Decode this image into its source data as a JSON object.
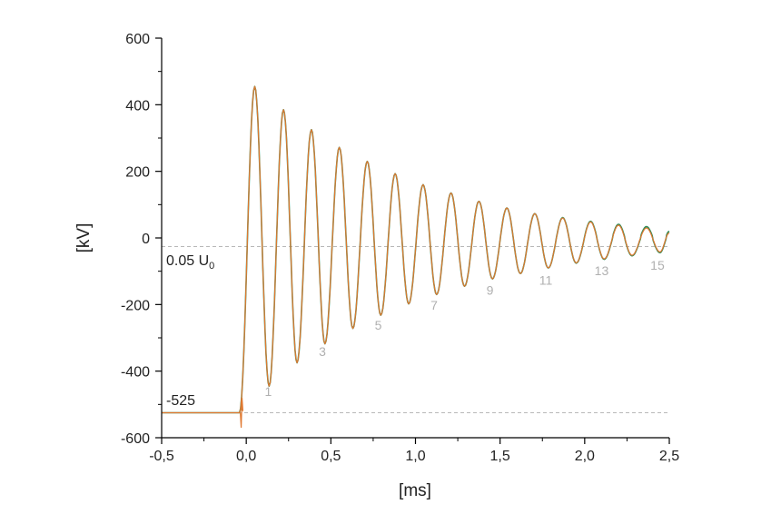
{
  "chart_data": {
    "type": "line",
    "title": "",
    "xlabel": "[ms]",
    "ylabel": "[kV]",
    "xlim": [
      -0.5,
      2.5
    ],
    "ylim": [
      -600,
      600
    ],
    "x_ticks": [
      "-0,5",
      "0,0",
      "0,5",
      "1,0",
      "1,5",
      "2,0",
      "2,5"
    ],
    "y_ticks": [
      "-600",
      "-400",
      "-200",
      "0",
      "200",
      "400",
      "600"
    ],
    "grid": false,
    "series_colors": [
      "#2e8b57",
      "#e07830"
    ],
    "reference_lines": [
      {
        "label": "0.05 U0",
        "value": -26,
        "style": "dashed",
        "color": "#b8b8b8"
      },
      {
        "label": "-525",
        "value": -525,
        "style": "dashed",
        "color": "#b8b8b8"
      }
    ],
    "annotations": {
      "level_label": "-525",
      "threshold_label_main": "0.05 U",
      "threshold_label_sub": "0"
    },
    "peak_labels": [
      {
        "text": "1",
        "x": 0.13,
        "y": -475
      },
      {
        "text": "3",
        "x": 0.45,
        "y": -355
      },
      {
        "text": "5",
        "x": 0.78,
        "y": -275
      },
      {
        "text": "7",
        "x": 1.11,
        "y": -215
      },
      {
        "text": "9",
        "x": 1.44,
        "y": -170
      },
      {
        "text": "11",
        "x": 1.77,
        "y": -140
      },
      {
        "text": "13",
        "x": 2.1,
        "y": -112
      },
      {
        "text": "15",
        "x": 2.43,
        "y": -95
      }
    ],
    "peaks": [
      {
        "x": -0.04,
        "y": -525
      },
      {
        "x": 0.05,
        "y": 455
      },
      {
        "x": 0.135,
        "y": -445
      },
      {
        "x": 0.22,
        "y": 385
      },
      {
        "x": 0.3,
        "y": -375
      },
      {
        "x": 0.385,
        "y": 325
      },
      {
        "x": 0.465,
        "y": -318
      },
      {
        "x": 0.55,
        "y": 272
      },
      {
        "x": 0.63,
        "y": -272
      },
      {
        "x": 0.715,
        "y": 230
      },
      {
        "x": 0.795,
        "y": -232
      },
      {
        "x": 0.88,
        "y": 193
      },
      {
        "x": 0.96,
        "y": -198
      },
      {
        "x": 1.045,
        "y": 160
      },
      {
        "x": 1.125,
        "y": -170
      },
      {
        "x": 1.21,
        "y": 135
      },
      {
        "x": 1.29,
        "y": -145
      },
      {
        "x": 1.375,
        "y": 110
      },
      {
        "x": 1.455,
        "y": -123
      },
      {
        "x": 1.54,
        "y": 90
      },
      {
        "x": 1.62,
        "y": -107
      },
      {
        "x": 1.705,
        "y": 73
      },
      {
        "x": 1.785,
        "y": -90
      },
      {
        "x": 1.87,
        "y": 60
      },
      {
        "x": 1.95,
        "y": -75
      },
      {
        "x": 2.035,
        "y": 48
      },
      {
        "x": 2.115,
        "y": -63
      },
      {
        "x": 2.2,
        "y": 38
      },
      {
        "x": 2.28,
        "y": -52
      },
      {
        "x": 2.365,
        "y": 30
      },
      {
        "x": 2.445,
        "y": -42
      },
      {
        "x": 2.5,
        "y": 15
      }
    ]
  }
}
